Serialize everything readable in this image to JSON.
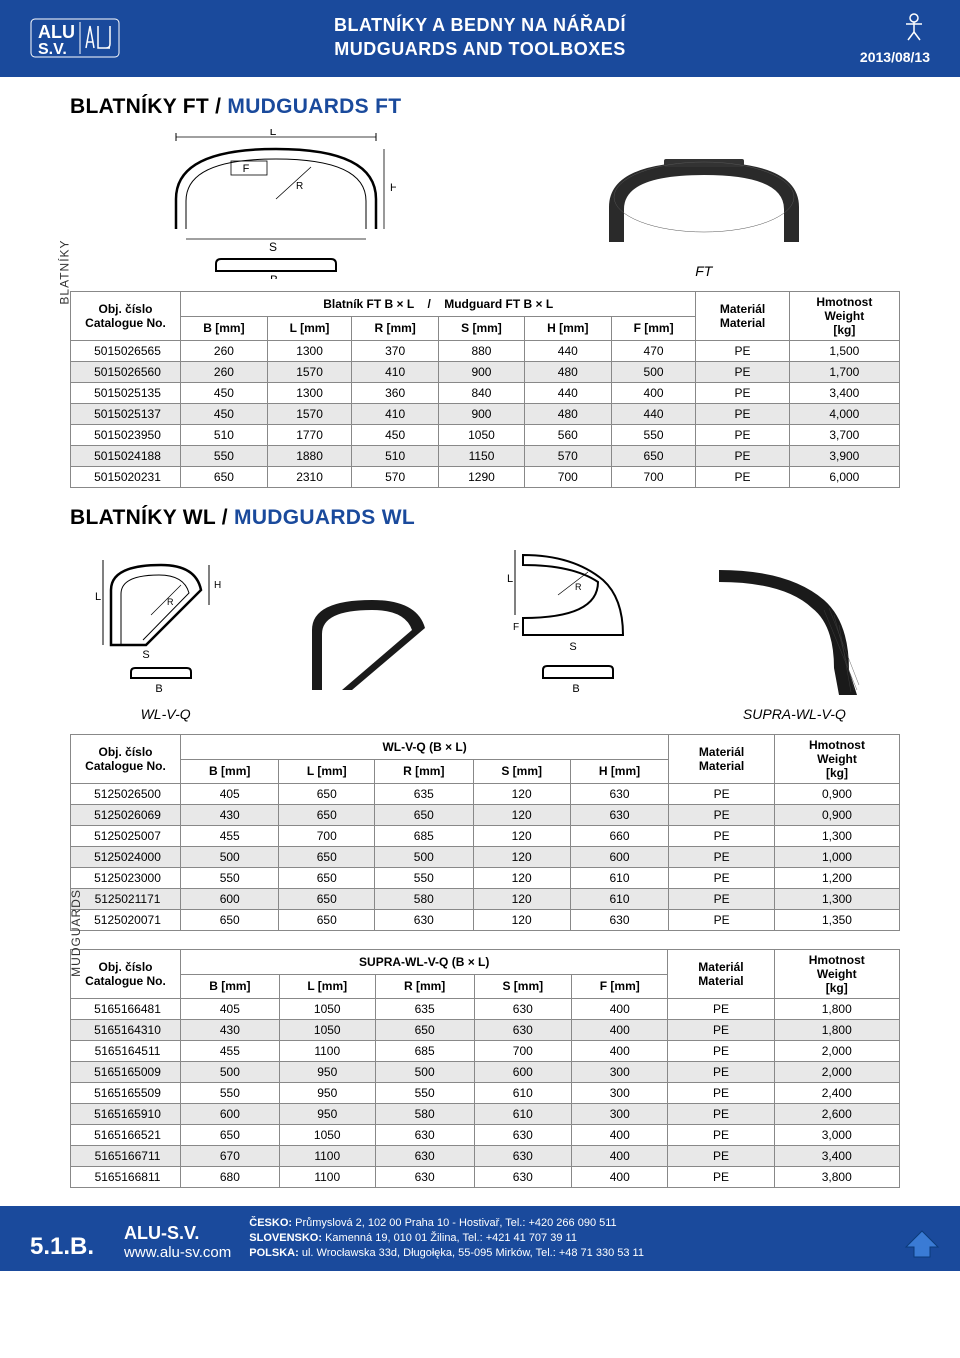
{
  "header": {
    "title_cz": "BLATNÍKY A BEDNY NA NÁŘADÍ",
    "title_en": "MUDGUARDS AND TOOLBOXES",
    "date": "2013/08/13",
    "logo_text": "ALU S.V."
  },
  "sidebar_labels": {
    "top": "BLATNÍKY",
    "bottom": "MUDGUARDS"
  },
  "section_ft": {
    "title_cz": "BLATNÍKY FT / ",
    "title_en": "MUDGUARDS FT",
    "diagram_labels": {
      "L": "L",
      "F": "F",
      "R": "R",
      "H": "H",
      "S": "S",
      "B": "B"
    },
    "photo_label": "FT",
    "table": {
      "header_cat_cz": "Obj. číslo",
      "header_cat_en": "Catalogue No.",
      "header_span_cz": "Blatník FT B × L",
      "header_span_sep": "/",
      "header_span_en": "Mudguard FT B × L",
      "header_mat_cz": "Materiál",
      "header_mat_en": "Material",
      "header_wt_cz": "Hmotnost",
      "header_wt_en": "Weight",
      "header_wt_unit": "[kg]",
      "cols": [
        "B  [mm]",
        "L [mm]",
        "R [mm]",
        "S [mm]",
        "H  [mm]",
        "F  [mm]"
      ],
      "rows": [
        [
          "5015026565",
          "260",
          "1300",
          "370",
          "880",
          "440",
          "470",
          "PE",
          "1,500"
        ],
        [
          "5015026560",
          "260",
          "1570",
          "410",
          "900",
          "480",
          "500",
          "PE",
          "1,700"
        ],
        [
          "5015025135",
          "450",
          "1300",
          "360",
          "840",
          "440",
          "400",
          "PE",
          "3,400"
        ],
        [
          "5015025137",
          "450",
          "1570",
          "410",
          "900",
          "480",
          "440",
          "PE",
          "4,000"
        ],
        [
          "5015023950",
          "510",
          "1770",
          "450",
          "1050",
          "560",
          "550",
          "PE",
          "3,700"
        ],
        [
          "5015024188",
          "550",
          "1880",
          "510",
          "1150",
          "570",
          "650",
          "PE",
          "3,900"
        ],
        [
          "5015020231",
          "650",
          "2310",
          "570",
          "1290",
          "700",
          "700",
          "PE",
          "6,000"
        ]
      ]
    }
  },
  "section_wl": {
    "title_cz": "BLATNÍKY WL / ",
    "title_en": "MUDGUARDS WL",
    "diagram_labels": {
      "L": "L",
      "F": "F",
      "R": "R",
      "H": "H",
      "S": "S",
      "B": "B"
    },
    "label_wl": "WL-V-Q",
    "label_supra": "SUPRA-WL-V-Q",
    "table1": {
      "header_cat_cz": "Obj. číslo",
      "header_cat_en": "Catalogue No.",
      "header_span": "WL-V-Q  (B × L)",
      "header_mat_cz": "Materiál",
      "header_mat_en": "Material",
      "header_wt_cz": "Hmotnost",
      "header_wt_en": "Weight",
      "header_wt_unit": "[kg]",
      "cols": [
        "B  [mm]",
        "L [mm]",
        "R [mm]",
        "S [mm]",
        "H  [mm]"
      ],
      "rows": [
        [
          "5125026500",
          "405",
          "650",
          "635",
          "120",
          "630",
          "PE",
          "0,900"
        ],
        [
          "5125026069",
          "430",
          "650",
          "650",
          "120",
          "630",
          "PE",
          "0,900"
        ],
        [
          "5125025007",
          "455",
          "700",
          "685",
          "120",
          "660",
          "PE",
          "1,300"
        ],
        [
          "5125024000",
          "500",
          "650",
          "500",
          "120",
          "600",
          "PE",
          "1,000"
        ],
        [
          "5125023000",
          "550",
          "650",
          "550",
          "120",
          "610",
          "PE",
          "1,200"
        ],
        [
          "5125021171",
          "600",
          "650",
          "580",
          "120",
          "610",
          "PE",
          "1,300"
        ],
        [
          "5125020071",
          "650",
          "650",
          "630",
          "120",
          "630",
          "PE",
          "1,350"
        ]
      ]
    },
    "table2": {
      "header_cat_cz": "Obj. číslo",
      "header_cat_en": "Catalogue No.",
      "header_span": "SUPRA-WL-V-Q  (B × L)",
      "header_mat_cz": "Materiál",
      "header_mat_en": "Material",
      "header_wt_cz": "Hmotnost",
      "header_wt_en": "Weight",
      "header_wt_unit": "[kg]",
      "cols": [
        "B  [mm]",
        "L [mm]",
        "R [mm]",
        "S [mm]",
        "F  [mm]"
      ],
      "rows": [
        [
          "5165166481",
          "405",
          "1050",
          "635",
          "630",
          "400",
          "PE",
          "1,800"
        ],
        [
          "5165164310",
          "430",
          "1050",
          "650",
          "630",
          "400",
          "PE",
          "1,800"
        ],
        [
          "5165164511",
          "455",
          "1100",
          "685",
          "700",
          "400",
          "PE",
          "2,000"
        ],
        [
          "5165165009",
          "500",
          "950",
          "500",
          "600",
          "300",
          "PE",
          "2,000"
        ],
        [
          "5165165509",
          "550",
          "950",
          "550",
          "610",
          "300",
          "PE",
          "2,400"
        ],
        [
          "5165165910",
          "600",
          "950",
          "580",
          "610",
          "300",
          "PE",
          "2,600"
        ],
        [
          "5165166521",
          "650",
          "1050",
          "630",
          "630",
          "400",
          "PE",
          "3,000"
        ],
        [
          "5165166711",
          "670",
          "1100",
          "630",
          "630",
          "400",
          "PE",
          "3,400"
        ],
        [
          "5165166811",
          "680",
          "1100",
          "630",
          "630",
          "400",
          "PE",
          "3,800"
        ]
      ]
    }
  },
  "footer": {
    "page_code": "5.1.B.",
    "brand": "ALU-S.V.",
    "url": "www.alu-sv.com",
    "addr1_label": "ČESKO:",
    "addr1": " Průmyslová 2, 102 00 Praha 10 - Hostivař, Tel.: +420 266 090 511",
    "addr2_label": "SLOVENSKO:",
    "addr2": " Kamenná 19, 010 01 Žilina,  Tel.: +421 41 707 39 11",
    "addr3_label": "POLSKA:",
    "addr3": " ul. Wrocławska 33d, Długołęka, 55-095 Mirków, Tel.: +48 71 330 53 11"
  },
  "colors": {
    "brand_blue": "#1a4a9c",
    "shade_gray": "#e8e8e8",
    "border_gray": "#888888"
  }
}
